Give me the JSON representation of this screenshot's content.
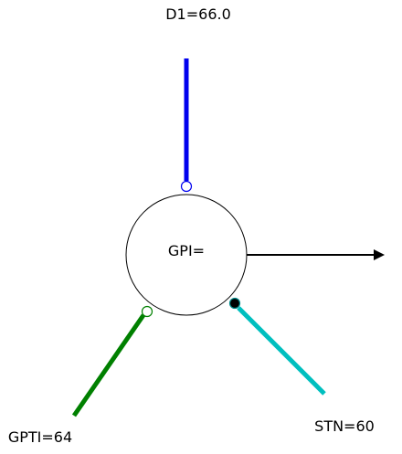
{
  "node": {
    "label": "GPI="
  },
  "inputs": {
    "d1": {
      "label": "D1=66.0",
      "color": "#0000ee",
      "terminal": "open-circle"
    },
    "gpti": {
      "label": "GPTI=64",
      "color": "#008000",
      "terminal": "open-circle"
    },
    "stn": {
      "label": "STN=60",
      "color": "#00bfbf",
      "terminal": "filled-circle"
    }
  },
  "output": {
    "color": "#000000"
  }
}
